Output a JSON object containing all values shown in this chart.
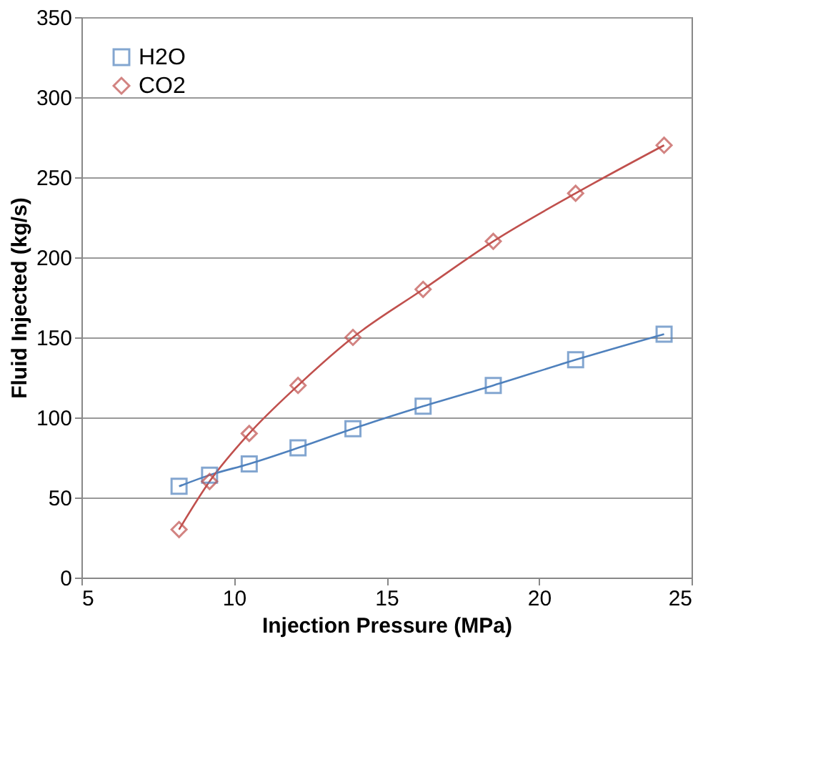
{
  "chart_data": {
    "type": "line",
    "xlabel": "Injection Pressure (MPa)",
    "ylabel": "Fluid Injected (kg/s)",
    "x": [
      8.2,
      9.2,
      10.5,
      12.1,
      13.9,
      16.2,
      18.5,
      21.2,
      24.1
    ],
    "series": [
      {
        "name": "H2O",
        "color": "#4f81bd",
        "marker": "square",
        "values": [
          57,
          64,
          71,
          81,
          93,
          107,
          120,
          136,
          152
        ]
      },
      {
        "name": "CO2",
        "color": "#c0504d",
        "marker": "diamond",
        "values": [
          30,
          60,
          90,
          120,
          150,
          180,
          210,
          240,
          270
        ]
      }
    ],
    "xlim": [
      5,
      25
    ],
    "xticks": [
      5,
      10,
      15,
      20,
      25
    ],
    "ylim": [
      0,
      350
    ],
    "yticks": [
      0,
      50,
      100,
      150,
      200,
      250,
      300,
      350
    ],
    "grid": "y",
    "legend": "top left"
  }
}
